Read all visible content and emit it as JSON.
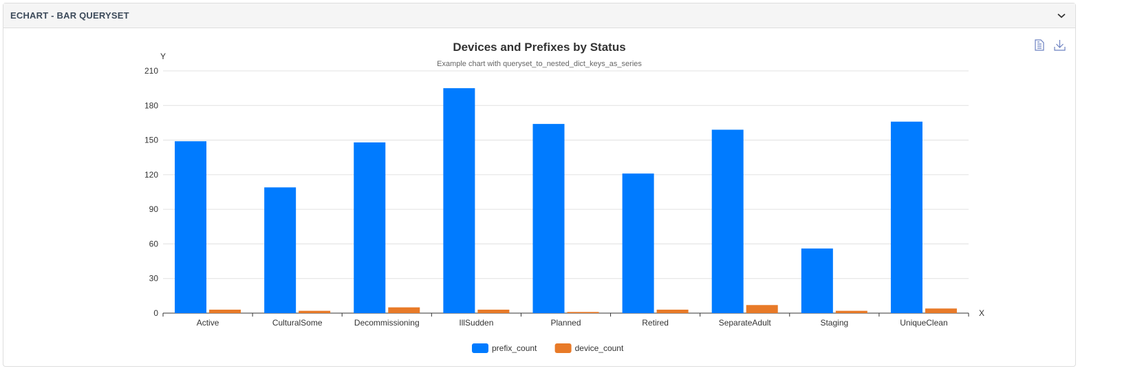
{
  "panel": {
    "title": "ECHART - BAR QUERYSET"
  },
  "toolbox": {
    "data_view": "data-view-icon",
    "save_image": "download-icon"
  },
  "chart_data": {
    "type": "bar",
    "title": "Devices and Prefixes by Status",
    "subtitle": "Example chart with queryset_to_nested_dict_keys_as_series",
    "xlabel": "X",
    "ylabel": "Y",
    "ylim": [
      0,
      210
    ],
    "yticks": [
      0,
      30,
      60,
      90,
      120,
      150,
      180,
      210
    ],
    "grid": true,
    "legend_position": "bottom",
    "categories": [
      "Active",
      "CulturalSome",
      "Decommissioning",
      "IllSudden",
      "Planned",
      "Retired",
      "SeparateAdult",
      "Staging",
      "UniqueClean"
    ],
    "series": [
      {
        "name": "prefix_count",
        "color": "#007bff",
        "values": [
          149,
          109,
          148,
          195,
          164,
          121,
          159,
          56,
          166
        ]
      },
      {
        "name": "device_count",
        "color": "#e87a28",
        "values": [
          3,
          2,
          5,
          3,
          1,
          3,
          7,
          2,
          4
        ]
      }
    ]
  }
}
